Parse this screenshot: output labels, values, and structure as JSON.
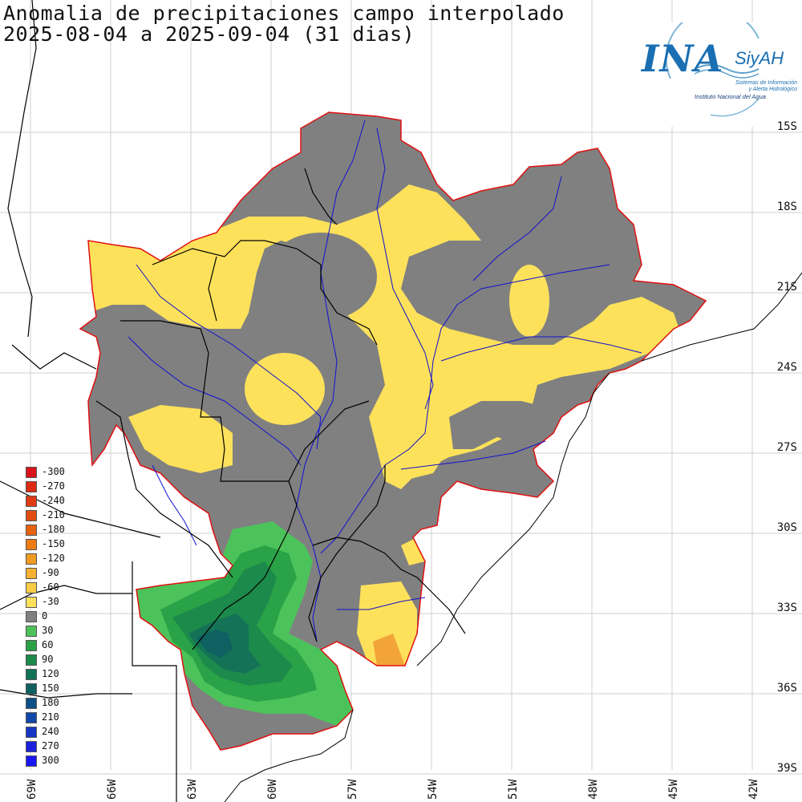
{
  "title": {
    "line1": "Anomalia de precipitaciones campo interpolado",
    "line2": "2025-08-04 a 2025-09-04 (31 dias)"
  },
  "logo": {
    "name": "INA",
    "system": "SiyAH",
    "institution": "Instituto Nacional del Agua",
    "tagline": "Sistemas de Información y Alerta Hidrológico"
  },
  "lat_labels": [
    "15S",
    "18S",
    "21S",
    "24S",
    "27S",
    "30S",
    "33S",
    "36S",
    "39S"
  ],
  "lon_labels": [
    "69W",
    "66W",
    "63W",
    "60W",
    "57W",
    "54W",
    "51W",
    "48W",
    "45W",
    "42W"
  ],
  "legend": {
    "items": [
      {
        "label": "-300",
        "color": "#d8141a"
      },
      {
        "label": "-270",
        "color": "#dd2a14"
      },
      {
        "label": "-240",
        "color": "#e03a14"
      },
      {
        "label": "-210",
        "color": "#e24e12"
      },
      {
        "label": "-180",
        "color": "#e6620f"
      },
      {
        "label": "-150",
        "color": "#ec7c12"
      },
      {
        "label": "-120",
        "color": "#f09a22"
      },
      {
        "label": "-90",
        "color": "#f4b132"
      },
      {
        "label": "-60",
        "color": "#f8cc46"
      },
      {
        "label": "-30",
        "color": "#fde15a"
      },
      {
        "label": "0",
        "color": "#808080"
      },
      {
        "label": "30",
        "color": "#4cc35a"
      },
      {
        "label": "60",
        "color": "#2aa247"
      },
      {
        "label": "90",
        "color": "#1c8a4b"
      },
      {
        "label": "120",
        "color": "#147356"
      },
      {
        "label": "150",
        "color": "#0f6060"
      },
      {
        "label": "180",
        "color": "#0e4f88"
      },
      {
        "label": "210",
        "color": "#1047a8"
      },
      {
        "label": "240",
        "color": "#1636c4"
      },
      {
        "label": "270",
        "color": "#1c22dc"
      },
      {
        "label": "300",
        "color": "#1a18f2"
      }
    ]
  },
  "colors": {
    "gray": "#808080",
    "yellow": "#fde15a",
    "orange": "#f2a43a",
    "green1": "#4cc35a",
    "green2": "#2aa247",
    "green3": "#1c8a4b",
    "green4": "#147356",
    "green5": "#0f6060",
    "basin_border": "#e01010",
    "river": "#1010d0",
    "border": "#000000",
    "grid": "#cfcfcf"
  }
}
